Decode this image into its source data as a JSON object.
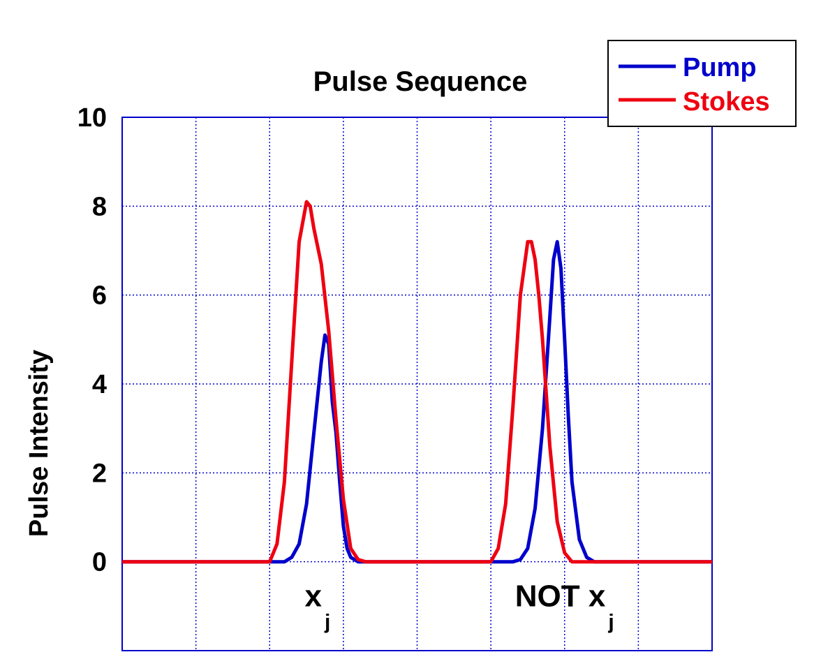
{
  "chart_data": {
    "type": "line",
    "title": "Pulse Sequence",
    "xlabel": "",
    "ylabel": "Pulse Intensity",
    "xlim": [
      0,
      8
    ],
    "ylim": [
      -2,
      10
    ],
    "yticks": [
      0,
      2,
      4,
      6,
      8,
      10
    ],
    "xticks": [
      0,
      1,
      2,
      3,
      4,
      5,
      6,
      7,
      8
    ],
    "grid": true,
    "legend_position": "top-right",
    "series": [
      {
        "name": "Pump",
        "color": "#0000cc",
        "x": [
          0,
          2.0,
          2.2,
          2.3,
          2.4,
          2.5,
          2.6,
          2.7,
          2.75,
          2.8,
          2.85,
          2.9,
          2.95,
          3.0,
          3.05,
          3.1,
          3.2,
          3.3,
          5.0,
          5.3,
          5.4,
          5.5,
          5.6,
          5.7,
          5.8,
          5.85,
          5.9,
          5.95,
          6.0,
          6.05,
          6.1,
          6.2,
          6.3,
          6.4,
          6.5,
          8
        ],
        "y": [
          0,
          0,
          0,
          0.1,
          0.4,
          1.3,
          2.9,
          4.5,
          5.1,
          4.9,
          3.6,
          2.9,
          1.8,
          0.8,
          0.3,
          0.1,
          0,
          0,
          0,
          0,
          0.05,
          0.3,
          1.2,
          3.0,
          5.5,
          6.8,
          7.2,
          6.6,
          5.0,
          3.3,
          1.8,
          0.5,
          0.1,
          0,
          0,
          0
        ]
      },
      {
        "name": "Stokes",
        "color": "#ee0011",
        "x": [
          0,
          2.0,
          2.1,
          2.2,
          2.3,
          2.4,
          2.5,
          2.55,
          2.6,
          2.7,
          2.8,
          2.9,
          3.0,
          3.1,
          3.2,
          3.3,
          5.0,
          5.1,
          5.2,
          5.3,
          5.4,
          5.5,
          5.55,
          5.6,
          5.65,
          5.7,
          5.8,
          5.9,
          6.0,
          6.1,
          6.2,
          8
        ],
        "y": [
          0,
          0,
          0.4,
          1.8,
          4.5,
          7.2,
          8.1,
          8.0,
          7.5,
          6.7,
          5.2,
          3.2,
          1.4,
          0.3,
          0.05,
          0,
          0,
          0.3,
          1.3,
          3.5,
          6.0,
          7.2,
          7.2,
          6.8,
          6.0,
          5.0,
          2.6,
          0.9,
          0.2,
          0,
          0,
          0
        ]
      }
    ],
    "annotations": [
      {
        "text": "x",
        "sub": "j",
        "x": 2.65,
        "y": -1.0
      },
      {
        "text": "NOT x",
        "sub": "j",
        "x": 6.0,
        "y": -1.0
      }
    ]
  }
}
